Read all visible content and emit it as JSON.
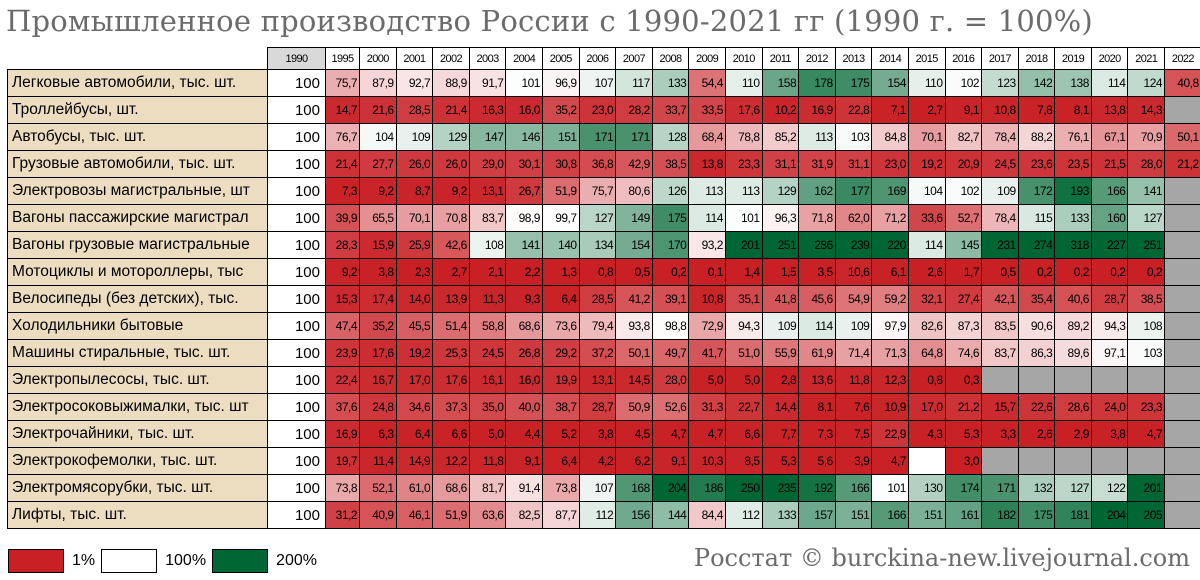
{
  "title": "Промышленное производство России с 1990-2021 гг (1990 г. = 100%)",
  "source": "Росстат © burckina-new.livejournal.com",
  "legend": [
    {
      "label": "1%",
      "color": "#c82025"
    },
    {
      "label": "100%",
      "color": "#ffffff"
    },
    {
      "label": "200%",
      "color": "#006633"
    }
  ],
  "chart_data": {
    "type": "heatmap",
    "title": "Промышленное производство России с 1990-2021 гг (1990 г. = 100%)",
    "base_year": "1990",
    "base_value": "100",
    "columns": [
      "1995",
      "2000",
      "2001",
      "2002",
      "2003",
      "2004",
      "2005",
      "2006",
      "2007",
      "2008",
      "2009",
      "2010",
      "2011",
      "2012",
      "2013",
      "2014",
      "2015",
      "2016",
      "2017",
      "2018",
      "2019",
      "2020",
      "2021",
      "2022"
    ],
    "rows": [
      {
        "label": "Легковые автомобили, тыс. шт.",
        "values": [
          "75,7",
          "87,9",
          "92,7",
          "88,9",
          "91,7",
          "101",
          "96,9",
          "107",
          "117",
          "133",
          "54,4",
          "110",
          "158",
          "178",
          "175",
          "154",
          "110",
          "102",
          "123",
          "142",
          "138",
          "114",
          "124",
          "40,8"
        ]
      },
      {
        "label": "Троллейбусы, шт.",
        "values": [
          "14,7",
          "21,6",
          "28,5",
          "21,4",
          "16,3",
          "16,0",
          "35,2",
          "23,0",
          "28,2",
          "33,7",
          "33,5",
          "17,6",
          "10,2",
          "16,9",
          "22,8",
          "7,1",
          "2,7",
          "9,1",
          "10,8",
          "7,8",
          "8,1",
          "13,8",
          "14,3",
          null
        ]
      },
      {
        "label": "Автобусы, тыс. шт.",
        "values": [
          "76,7",
          "104",
          "109",
          "129",
          "147",
          "146",
          "151",
          "171",
          "171",
          "128",
          "68,4",
          "78,8",
          "85,2",
          "113",
          "103",
          "84,8",
          "70,1",
          "82,7",
          "78,4",
          "88,2",
          "76,1",
          "67,1",
          "70,9",
          "50,1"
        ]
      },
      {
        "label": "Грузовые автомобили, тыс. шт.",
        "values": [
          "21,4",
          "27,7",
          "26,0",
          "26,0",
          "29,0",
          "30,1",
          "30,8",
          "36,8",
          "42,9",
          "38,5",
          "13,8",
          "23,3",
          "31,1",
          "31,9",
          "31,1",
          "23,0",
          "19,2",
          "20,9",
          "24,5",
          "23,6",
          "23,5",
          "21,5",
          "28,0",
          "21,2"
        ]
      },
      {
        "label": "Электровозы магистральные, шт",
        "values": [
          "7,3",
          "9,2",
          "8,7",
          "9,2",
          "13,1",
          "26,7",
          "51,9",
          "75,7",
          "80,6",
          "126",
          "113",
          "113",
          "129",
          "162",
          "177",
          "169",
          "104",
          "102",
          "109",
          "172",
          "193",
          "166",
          "141",
          null
        ]
      },
      {
        "label": "Вагоны пассажирские магистрал",
        "values": [
          "39,9",
          "65,5",
          "70,1",
          "70,8",
          "83,7",
          "98,9",
          "99,7",
          "127",
          "149",
          "175",
          "114",
          "101",
          "96,3",
          "71,8",
          "62,0",
          "71,2",
          "33,6",
          "52,7",
          "78,4",
          "115",
          "133",
          "160",
          "127",
          null
        ]
      },
      {
        "label": "Вагоны грузовые магистральные",
        "values": [
          "28,3",
          "15,9",
          "25,9",
          "42,6",
          "108",
          "141",
          "140",
          "134",
          "154",
          "170",
          "93,2",
          "201",
          "251",
          "286",
          "239",
          "220",
          "114",
          "145",
          "231",
          "274",
          "318",
          "227",
          "251",
          null
        ]
      },
      {
        "label": "Мотоциклы и мотороллеры, тыс",
        "values": [
          "9,2",
          "3,8",
          "2,3",
          "2,7",
          "2,1",
          "2,2",
          "1,3",
          "0,8",
          "0,5",
          "0,2",
          "0,1",
          "1,4",
          "1,5",
          "3,5",
          "10,6",
          "6,1",
          "2,6",
          "1,7",
          "0,5",
          "0,2",
          "0,2",
          "0,2",
          "0,2",
          null
        ]
      },
      {
        "label": "Велосипеды (без детских), тыс.",
        "values": [
          "15,3",
          "17,4",
          "14,0",
          "13,9",
          "11,3",
          "9,3",
          "6,4",
          "28,5",
          "41,2",
          "39,1",
          "10,8",
          "35,1",
          "41,8",
          "45,6",
          "54,9",
          "59,2",
          "32,1",
          "27,4",
          "42,1",
          "35,4",
          "40,6",
          "28,7",
          "38,5",
          null
        ]
      },
      {
        "label": "Холодильники бытовые",
        "values": [
          "47,4",
          "35,2",
          "45,5",
          "51,4",
          "58,8",
          "68,6",
          "73,6",
          "79,4",
          "93,8",
          "98,8",
          "72,9",
          "94,3",
          "109",
          "114",
          "109",
          "97,9",
          "82,6",
          "87,3",
          "83,5",
          "90,6",
          "89,2",
          "94,3",
          "108",
          null
        ]
      },
      {
        "label": "Машины стиральные, тыс. шт.",
        "values": [
          "23,9",
          "17,6",
          "19,2",
          "25,3",
          "24,5",
          "26,8",
          "29,2",
          "37,2",
          "50,1",
          "49,7",
          "41,7",
          "51,0",
          "55,9",
          "61,9",
          "71,4",
          "71,3",
          "64,8",
          "74,6",
          "83,7",
          "86,3",
          "89,6",
          "97,1",
          "103",
          null
        ]
      },
      {
        "label": "Электропылесосы, тыс. шт.",
        "values": [
          "22,4",
          "16,7",
          "17,0",
          "17,6",
          "16,1",
          "16,0",
          "19,9",
          "13,1",
          "14,5",
          "28,0",
          "5,0",
          "5,0",
          "2,8",
          "13,6",
          "11,8",
          "12,3",
          "0,8",
          "0,3",
          null,
          null,
          null,
          null,
          null,
          null
        ]
      },
      {
        "label": "Электросоковыжималки, тыс. шт",
        "values": [
          "37,6",
          "24,8",
          "34,6",
          "37,3",
          "35,0",
          "40,0",
          "38,7",
          "28,7",
          "50,9",
          "52,6",
          "31,3",
          "22,7",
          "14,4",
          "8,1",
          "7,6",
          "10,9",
          "17,0",
          "21,2",
          "15,7",
          "22,6",
          "28,6",
          "24,0",
          "23,3",
          null
        ]
      },
      {
        "label": "Электрочайники, тыс. шт.",
        "values": [
          "16,9",
          "6,3",
          "6,4",
          "6,6",
          "5,0",
          "4,4",
          "5,2",
          "3,8",
          "4,5",
          "4,7",
          "4,7",
          "6,6",
          "7,7",
          "7,3",
          "7,5",
          "22,9",
          "4,3",
          "5,3",
          "3,3",
          "2,6",
          "2,9",
          "3,8",
          "4,7",
          null
        ]
      },
      {
        "label": "Электрокофемолки, тыс. шт.",
        "values": [
          "19,7",
          "11,4",
          "14,9",
          "12,2",
          "11,8",
          "9,1",
          "6,4",
          "4,2",
          "6,2",
          "9,1",
          "10,3",
          "8,5",
          "5,3",
          "5,6",
          "3,9",
          "4,7",
          "",
          "3,0",
          null,
          null,
          null,
          null,
          null,
          null
        ]
      },
      {
        "label": "Электромясорубки, тыс. шт.",
        "values": [
          "73,8",
          "52,1",
          "61,0",
          "68,6",
          "81,7",
          "91,4",
          "73,8",
          "107",
          "168",
          "204",
          "186",
          "250",
          "235",
          "192",
          "166",
          "101",
          "130",
          "174",
          "171",
          "132",
          "127",
          "122",
          "201",
          null
        ]
      },
      {
        "label": "Лифты, тыс. шт.",
        "values": [
          "31,2",
          "40,9",
          "46,1",
          "51,9",
          "63,6",
          "82,5",
          "87,7",
          "112",
          "156",
          "144",
          "84,4",
          "112",
          "133",
          "157",
          "151",
          "166",
          "151",
          "161",
          "182",
          "175",
          "181",
          "204",
          "205",
          null
        ]
      }
    ]
  }
}
